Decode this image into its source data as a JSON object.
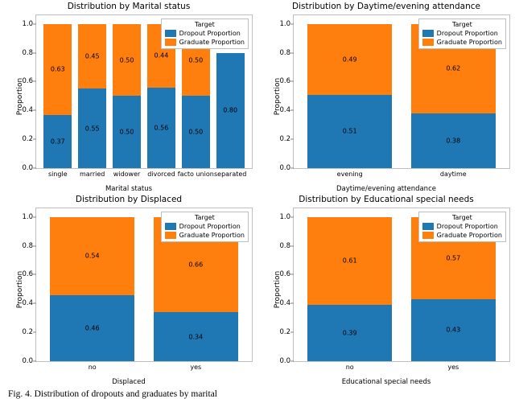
{
  "colors": {
    "dropout": "#1f77b4",
    "graduate": "#ff7f0e",
    "border": "#bfbfbf",
    "bg": "#ffffff"
  },
  "yticks": [
    0.0,
    0.2,
    0.4,
    0.6,
    0.8,
    1.0
  ],
  "yticklabels": [
    "0.0",
    "0.2",
    "0.4",
    "0.6",
    "0.8",
    "1.0"
  ],
  "ylim_max": 1.06,
  "ylabel": "Proportion",
  "legend": {
    "title": "Target",
    "items": [
      "Dropout Proportion",
      "Graduate Proportion"
    ]
  },
  "panels": [
    {
      "title": "Distribution by Marital status",
      "xlabel": "Marital status",
      "bar_rel_width": 0.85,
      "categories": [
        "single",
        "married",
        "widower",
        "divorced",
        "facto union",
        "separated"
      ],
      "dropout": [
        0.37,
        0.55,
        0.5,
        0.56,
        0.5,
        0.8
      ],
      "graduate": [
        0.63,
        0.45,
        0.5,
        0.44,
        0.5,
        0.0
      ],
      "dlabels": [
        "0.37",
        "0.55",
        "0.50",
        "0.56",
        "0.50",
        "0.80"
      ],
      "glabels": [
        "0.63",
        "0.45",
        "0.50",
        "0.44",
        "0.50",
        ""
      ]
    },
    {
      "title": "Distribution by Daytime/evening attendance",
      "xlabel": "Daytime/evening attendance",
      "bar_rel_width": 0.85,
      "categories": [
        "evening",
        "daytime"
      ],
      "dropout": [
        0.51,
        0.38
      ],
      "graduate": [
        0.49,
        0.62
      ],
      "dlabels": [
        "0.51",
        "0.38"
      ],
      "glabels": [
        "0.49",
        "0.62"
      ]
    },
    {
      "title": "Distribution by Displaced",
      "xlabel": "Displaced",
      "bar_rel_width": 0.85,
      "categories": [
        "no",
        "yes"
      ],
      "dropout": [
        0.46,
        0.34
      ],
      "graduate": [
        0.54,
        0.66
      ],
      "dlabels": [
        "0.46",
        "0.34"
      ],
      "glabels": [
        "0.54",
        "0.66"
      ]
    },
    {
      "title": "Distribution by Educational special needs",
      "xlabel": "Educational special needs",
      "bar_rel_width": 0.85,
      "categories": [
        "no",
        "yes"
      ],
      "dropout": [
        0.39,
        0.43
      ],
      "graduate": [
        0.61,
        0.57
      ],
      "dlabels": [
        "0.39",
        "0.43"
      ],
      "glabels": [
        "0.61",
        "0.57"
      ]
    }
  ],
  "caption": "Fig. 4.  Distribution of dropouts and graduates by marital"
}
